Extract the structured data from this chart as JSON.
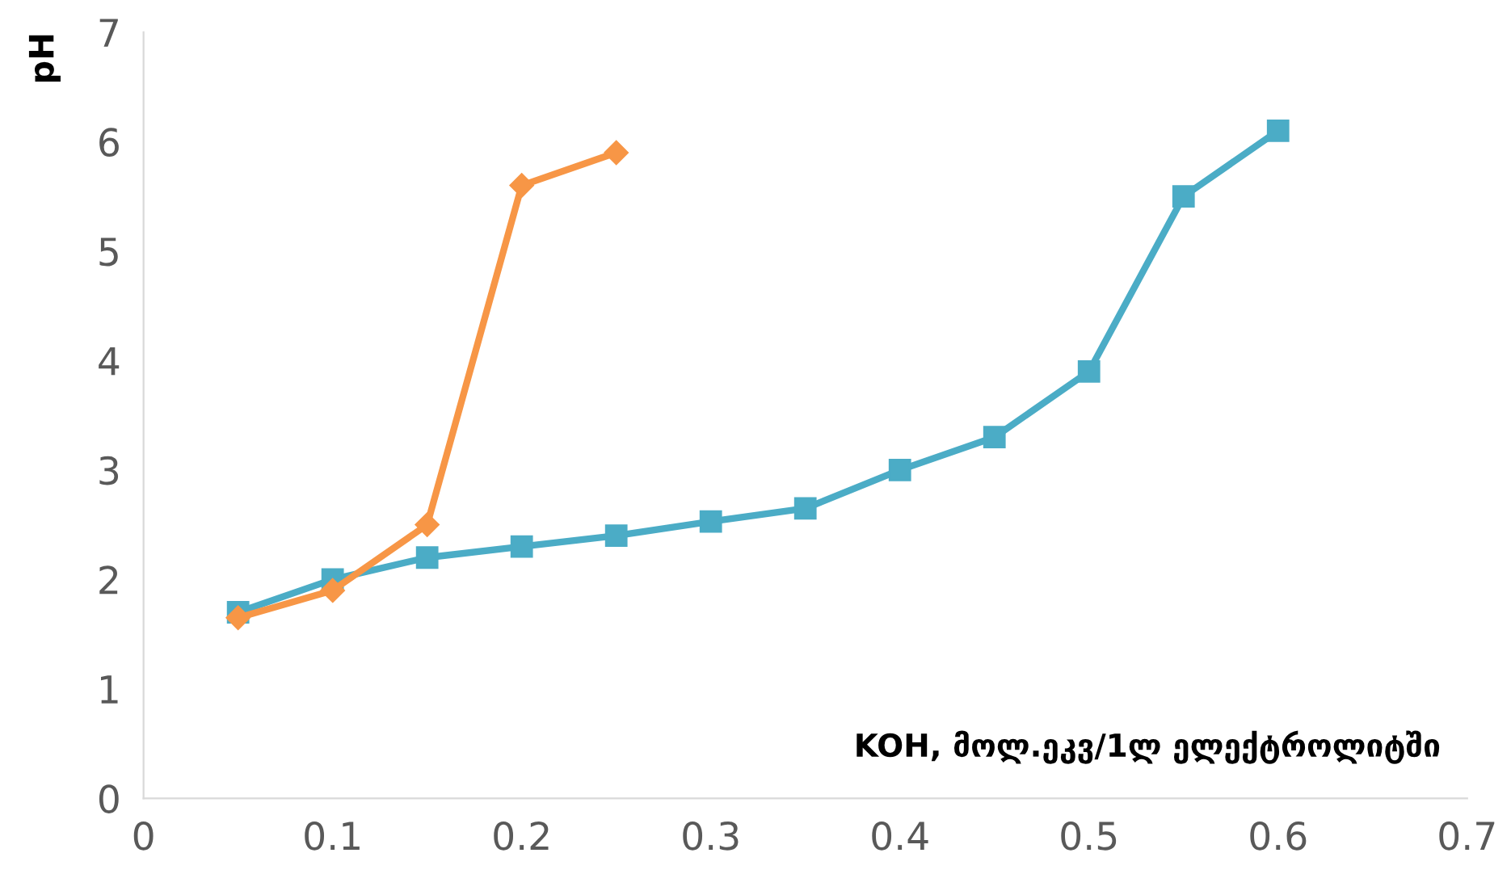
{
  "chart_data": {
    "type": "line",
    "xlabel": "KOH, მოლ.ეკვ/1ლ ელექტროლიტში",
    "ylabel": "pH",
    "xlim": [
      0,
      0.7
    ],
    "xticks": [
      0,
      0.1,
      0.2,
      0.3,
      0.4,
      0.5,
      0.6,
      0.7
    ],
    "ylim": [
      0,
      7
    ],
    "yticks": [
      0,
      1,
      2,
      3,
      4,
      5,
      6,
      7
    ],
    "grid": false,
    "legend": false,
    "series": [
      {
        "color": "#f79646",
        "marker": "diamond",
        "x": [
          0.05,
          0.1,
          0.15,
          0.2,
          0.25
        ],
        "values": [
          1.65,
          1.9,
          2.5,
          5.6,
          5.9
        ]
      },
      {
        "color": "#4bacc6",
        "marker": "square",
        "x": [
          0.05,
          0.1,
          0.15,
          0.2,
          0.25,
          0.3,
          0.35,
          0.4,
          0.45,
          0.5,
          0.55,
          0.6
        ],
        "values": [
          1.7,
          2.0,
          2.2,
          2.3,
          2.4,
          2.53,
          2.65,
          3.0,
          3.3,
          3.9,
          5.5,
          6.1
        ]
      }
    ]
  }
}
